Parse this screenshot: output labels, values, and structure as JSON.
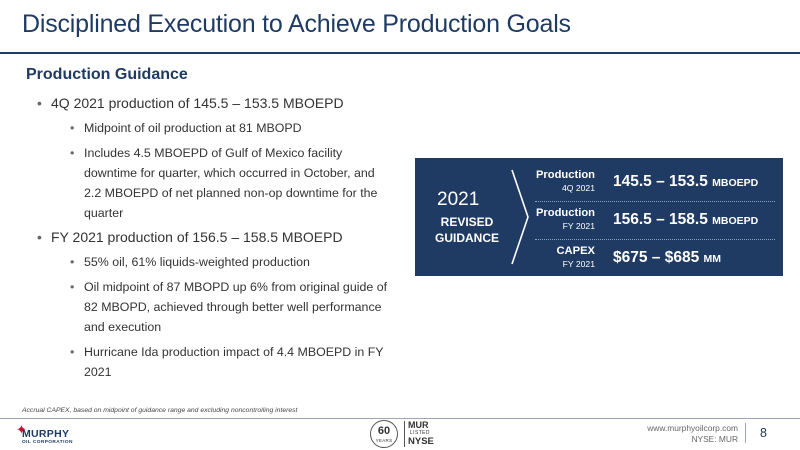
{
  "slide": {
    "title": "Disciplined Execution to Achieve Production Goals",
    "section_heading": "Production Guidance",
    "bullets": {
      "b1": "4Q 2021 production of 145.5 – 153.5 MBOEPD",
      "b1_sub": [
        "Midpoint of oil production at 81 MBOPD",
        "Includes 4.5 MBOEPD of Gulf of Mexico facility downtime for quarter, which occurred in October, and 2.2 MBOEPD of net planned non-op downtime for the quarter"
      ],
      "b2": "FY 2021 production of 156.5 – 158.5 MBOEPD",
      "b2_sub": [
        "55% oil, 61% liquids-weighted production",
        "Oil midpoint of 87 MBOPD up 6% from original guide of 82 MBOPD, achieved through better well performance and execution",
        "Hurricane Ida production impact of 4.4 MBOEPD in FY 2021"
      ]
    },
    "guidance_box": {
      "year": "2021",
      "label_line1": "REVISED",
      "label_line2": "GUIDANCE",
      "rows": [
        {
          "name": "Production",
          "period": "4Q 2021",
          "value": "145.5 – 153.5",
          "unit": "MBOEPD"
        },
        {
          "name": "Production",
          "period": "FY 2021",
          "value": "156.5 – 158.5",
          "unit": "MBOEPD"
        },
        {
          "name": "CAPEX",
          "period": "FY 2021",
          "value": "$675 – $685",
          "unit": "MM"
        }
      ]
    },
    "footnote": "Accrual CAPEX, based on midpoint of guidance range and excluding noncontrolling interest"
  },
  "footer": {
    "logo_name": "MURPHY",
    "logo_sub": "OIL CORPORATION",
    "badge_years_num": "60",
    "badge_years_word": "YEARS",
    "badge_ticker": "MUR",
    "badge_listed": "LISTED",
    "badge_exchange": "NYSE",
    "url": "www.murphyoilcorp.com",
    "ticker": "NYSE: MUR",
    "page_number": "8"
  },
  "colors": {
    "brand_navy": "#1f3b63",
    "brand_red": "#c8102e"
  },
  "icons": {
    "chevron": "chevron-right-icon",
    "logo_star": "star-icon"
  }
}
